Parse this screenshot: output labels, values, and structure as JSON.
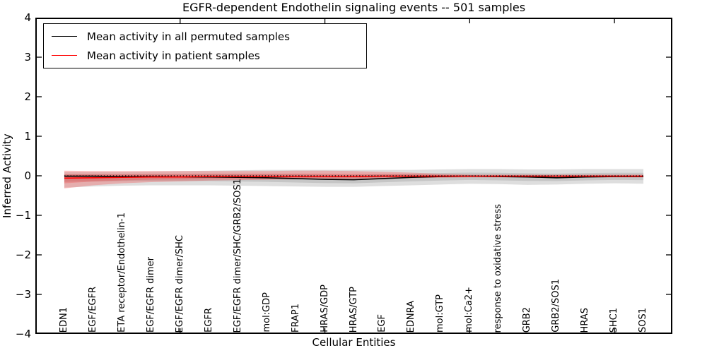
{
  "figure": {
    "title": "EGFR-dependent Endothelin signaling events -- 501 samples",
    "xlabel": "Cellular Entities",
    "ylabel": "Inferred Activity"
  },
  "legend": {
    "position": "upper left",
    "items": [
      {
        "label": "Mean activity in all permuted samples",
        "color": "#000000"
      },
      {
        "label": "Mean activity in patient samples",
        "color": "#ff0000"
      }
    ]
  },
  "chart_data": {
    "type": "line",
    "title": "EGFR-dependent Endothelin signaling events -- 501 samples",
    "xlabel": "Cellular Entities",
    "ylabel": "Inferred Activity",
    "grid": false,
    "legend_position": "upper left",
    "ylim": [
      -4,
      4
    ],
    "yticks": [
      4,
      3,
      2,
      1,
      0,
      -1,
      -2,
      -3,
      -4
    ],
    "xlim": [
      0,
      22
    ],
    "numeric_xticks": [
      5,
      10,
      15,
      20
    ],
    "categories": [
      "EDN1",
      "EGF/EGFR",
      "ETA receptor/Endothelin-1",
      "EGF/EGFR dimer",
      "EGF/EGFR dimer/SHC",
      "EGFR",
      "EGF/EGFR dimer/SHC/GRB2/SOS1",
      "mol:GDP",
      "FRAP1",
      "HRAS/GDP",
      "HRAS/GTP",
      "EGF",
      "EDNRA",
      "mol:GTP",
      "mol:Ca2+",
      "response to oxidative stress",
      "GRB2",
      "GRB2/SOS1",
      "HRAS",
      "SHC1",
      "SOS1"
    ],
    "x_positions": [
      1,
      2,
      3,
      4,
      5,
      6,
      7,
      8,
      9,
      10,
      11,
      12,
      13,
      14,
      15,
      16,
      17,
      18,
      19,
      20,
      21
    ],
    "reference_line": {
      "y": 0,
      "style": "dotted",
      "color": "#000000"
    },
    "series": [
      {
        "name": "Mean activity in all permuted samples",
        "color": "#000000",
        "band_fill_opacity": 0.13,
        "values": [
          -0.01,
          -0.01,
          -0.02,
          -0.02,
          -0.03,
          -0.03,
          -0.04,
          -0.05,
          -0.07,
          -0.09,
          -0.1,
          -0.07,
          -0.04,
          -0.02,
          -0.01,
          -0.02,
          -0.03,
          -0.05,
          -0.03,
          -0.02,
          -0.02
        ],
        "band_upper": [
          0.1,
          0.1,
          0.1,
          0.11,
          0.12,
          0.13,
          0.14,
          0.15,
          0.15,
          0.15,
          0.15,
          0.15,
          0.15,
          0.16,
          0.17,
          0.17,
          0.16,
          0.16,
          0.17,
          0.17,
          0.17
        ],
        "band_lower": [
          -0.3,
          -0.27,
          -0.25,
          -0.24,
          -0.24,
          -0.24,
          -0.25,
          -0.26,
          -0.27,
          -0.28,
          -0.28,
          -0.26,
          -0.24,
          -0.22,
          -0.2,
          -0.21,
          -0.23,
          -0.22,
          -0.2,
          -0.19,
          -0.2
        ]
      },
      {
        "name": "Mean activity in patient samples",
        "color": "#ff0000",
        "band_fill_opacity": 0.22,
        "values": [
          -0.06,
          -0.05,
          -0.04,
          -0.03,
          -0.03,
          -0.02,
          -0.02,
          -0.02,
          -0.02,
          -0.02,
          -0.02,
          -0.01,
          -0.01,
          -0.01,
          -0.01,
          -0.01,
          -0.01,
          -0.01,
          -0.01,
          -0.01,
          -0.01
        ],
        "band_upper": [
          0.13,
          0.12,
          0.12,
          0.12,
          0.12,
          0.12,
          0.12,
          0.12,
          0.13,
          0.13,
          0.12,
          0.1,
          0.08,
          0.05,
          0.03,
          0.03,
          0.03,
          0.03,
          0.03,
          0.03,
          0.03
        ],
        "band_lower": [
          -0.32,
          -0.24,
          -0.19,
          -0.16,
          -0.14,
          -0.12,
          -0.11,
          -0.1,
          -0.09,
          -0.08,
          -0.08,
          -0.07,
          -0.06,
          -0.05,
          -0.04,
          -0.04,
          -0.04,
          -0.04,
          -0.04,
          -0.04,
          -0.04
        ]
      }
    ]
  }
}
